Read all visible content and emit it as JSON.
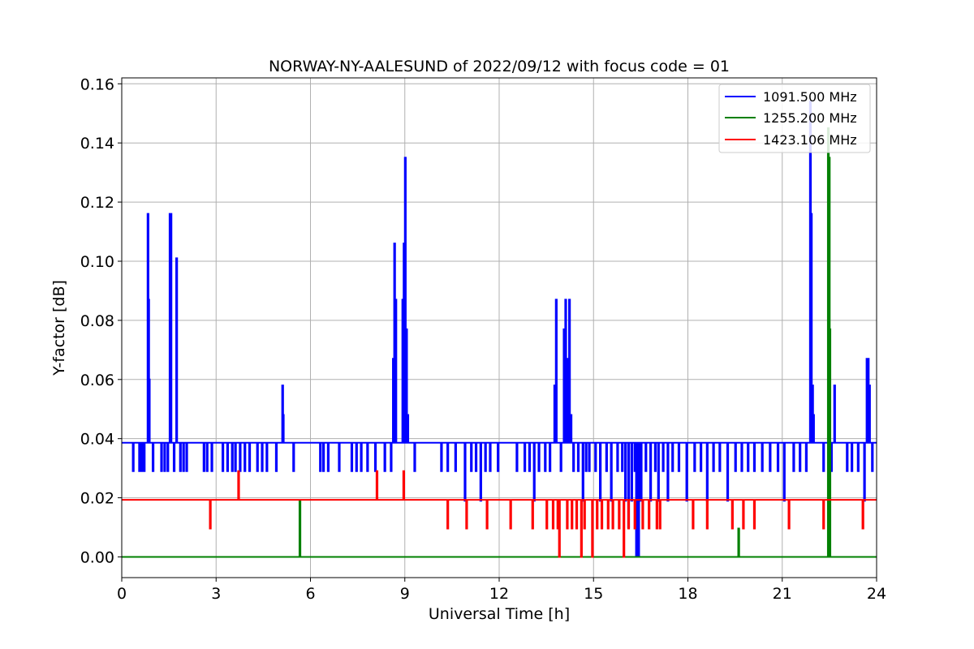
{
  "chart_data": {
    "type": "line",
    "title": "NORWAY-NY-AALESUND of 2022/09/12 with focus code = 01",
    "xlabel": "Universal Time [h]",
    "ylabel": "Y-factor [dB]",
    "xlim": [
      0,
      24
    ],
    "ylim": [
      -0.007,
      0.162
    ],
    "xticks": [
      0,
      3,
      6,
      9,
      12,
      15,
      18,
      21,
      24
    ],
    "xtick_labels": [
      "0",
      "3",
      "6",
      "9",
      "12",
      "15",
      "18",
      "21",
      "24"
    ],
    "yticks": [
      0.0,
      0.02,
      0.04,
      0.06,
      0.08,
      0.1,
      0.12,
      0.14,
      0.16
    ],
    "ytick_labels": [
      "0.00",
      "0.02",
      "0.04",
      "0.06",
      "0.08",
      "0.10",
      "0.12",
      "0.14",
      "0.16"
    ],
    "grid": true,
    "legend_position": "top-right",
    "series": [
      {
        "name": "1091.500 MHz",
        "color": "#0000ff",
        "baseline": 0.0386,
        "spikes": [
          [
            0.35,
            0.029
          ],
          [
            0.55,
            0.029
          ],
          [
            0.62,
            0.029
          ],
          [
            0.7,
            0.029
          ],
          [
            0.82,
            0.116
          ],
          [
            0.84,
            0.087
          ],
          [
            0.86,
            0.06
          ],
          [
            0.98,
            0.029
          ],
          [
            1.25,
            0.029
          ],
          [
            1.35,
            0.029
          ],
          [
            1.45,
            0.029
          ],
          [
            1.52,
            0.116
          ],
          [
            1.55,
            0.116
          ],
          [
            1.65,
            0.029
          ],
          [
            1.73,
            0.101
          ],
          [
            1.85,
            0.029
          ],
          [
            1.95,
            0.029
          ],
          [
            2.05,
            0.029
          ],
          [
            2.6,
            0.029
          ],
          [
            2.7,
            0.029
          ],
          [
            2.85,
            0.029
          ],
          [
            3.2,
            0.029
          ],
          [
            3.35,
            0.029
          ],
          [
            3.5,
            0.029
          ],
          [
            3.6,
            0.029
          ],
          [
            3.75,
            0.029
          ],
          [
            3.9,
            0.029
          ],
          [
            4.05,
            0.029
          ],
          [
            4.3,
            0.029
          ],
          [
            4.45,
            0.029
          ],
          [
            4.6,
            0.029
          ],
          [
            4.9,
            0.029
          ],
          [
            5.1,
            0.058
          ],
          [
            5.12,
            0.048
          ],
          [
            5.45,
            0.029
          ],
          [
            6.3,
            0.029
          ],
          [
            6.4,
            0.029
          ],
          [
            6.55,
            0.029
          ],
          [
            6.9,
            0.029
          ],
          [
            7.3,
            0.029
          ],
          [
            7.45,
            0.029
          ],
          [
            7.6,
            0.029
          ],
          [
            7.8,
            0.029
          ],
          [
            8.05,
            0.029
          ],
          [
            8.35,
            0.029
          ],
          [
            8.55,
            0.029
          ],
          [
            8.62,
            0.067
          ],
          [
            8.66,
            0.106
          ],
          [
            8.7,
            0.087
          ],
          [
            8.92,
            0.087
          ],
          [
            8.96,
            0.106
          ],
          [
            9.0,
            0.135
          ],
          [
            9.04,
            0.077
          ],
          [
            9.08,
            0.048
          ],
          [
            9.3,
            0.029
          ],
          [
            10.15,
            0.029
          ],
          [
            10.35,
            0.029
          ],
          [
            10.6,
            0.029
          ],
          [
            10.9,
            0.019
          ],
          [
            11.1,
            0.029
          ],
          [
            11.25,
            0.029
          ],
          [
            11.4,
            0.019
          ],
          [
            11.55,
            0.029
          ],
          [
            11.7,
            0.029
          ],
          [
            11.95,
            0.029
          ],
          [
            12.55,
            0.029
          ],
          [
            12.8,
            0.029
          ],
          [
            12.95,
            0.029
          ],
          [
            13.1,
            0.019
          ],
          [
            13.25,
            0.029
          ],
          [
            13.45,
            0.029
          ],
          [
            13.6,
            0.029
          ],
          [
            13.75,
            0.058
          ],
          [
            13.8,
            0.087
          ],
          [
            13.95,
            0.029
          ],
          [
            14.05,
            0.077
          ],
          [
            14.1,
            0.087
          ],
          [
            14.15,
            0.067
          ],
          [
            14.22,
            0.087
          ],
          [
            14.27,
            0.048
          ],
          [
            14.35,
            0.029
          ],
          [
            14.5,
            0.029
          ],
          [
            14.65,
            0.019
          ],
          [
            14.75,
            0.029
          ],
          [
            14.85,
            0.029
          ],
          [
            15.05,
            0.029
          ],
          [
            15.2,
            0.019
          ],
          [
            15.4,
            0.029
          ],
          [
            15.55,
            0.019
          ],
          [
            15.75,
            0.029
          ],
          [
            15.9,
            0.029
          ],
          [
            16.0,
            0.019
          ],
          [
            16.1,
            0.01
          ],
          [
            16.2,
            0.019
          ],
          [
            16.3,
            0.029
          ],
          [
            16.35,
            0.0
          ],
          [
            16.42,
            0.0
          ],
          [
            16.5,
            0.019
          ],
          [
            16.65,
            0.029
          ],
          [
            16.8,
            0.019
          ],
          [
            16.95,
            0.029
          ],
          [
            17.05,
            0.019
          ],
          [
            17.2,
            0.029
          ],
          [
            17.35,
            0.019
          ],
          [
            17.5,
            0.029
          ],
          [
            17.7,
            0.029
          ],
          [
            17.95,
            0.019
          ],
          [
            18.2,
            0.029
          ],
          [
            18.4,
            0.029
          ],
          [
            18.6,
            0.019
          ],
          [
            18.8,
            0.029
          ],
          [
            19.0,
            0.029
          ],
          [
            19.25,
            0.019
          ],
          [
            19.5,
            0.029
          ],
          [
            19.7,
            0.029
          ],
          [
            19.9,
            0.029
          ],
          [
            20.1,
            0.029
          ],
          [
            20.35,
            0.029
          ],
          [
            20.6,
            0.029
          ],
          [
            20.85,
            0.029
          ],
          [
            21.05,
            0.019
          ],
          [
            21.35,
            0.029
          ],
          [
            21.55,
            0.029
          ],
          [
            21.75,
            0.029
          ],
          [
            21.88,
            0.154
          ],
          [
            21.91,
            0.116
          ],
          [
            21.95,
            0.058
          ],
          [
            21.98,
            0.048
          ],
          [
            22.3,
            0.029
          ],
          [
            22.55,
            0.029
          ],
          [
            22.65,
            0.058
          ],
          [
            23.05,
            0.029
          ],
          [
            23.2,
            0.029
          ],
          [
            23.4,
            0.029
          ],
          [
            23.6,
            0.019
          ],
          [
            23.68,
            0.067
          ],
          [
            23.72,
            0.067
          ],
          [
            23.76,
            0.058
          ],
          [
            23.85,
            0.029
          ]
        ]
      },
      {
        "name": "1255.200 MHz",
        "color": "#008000",
        "baseline": 0.0,
        "spikes": [
          [
            5.65,
            0.019
          ],
          [
            19.6,
            0.0096
          ],
          [
            22.45,
            0.145
          ],
          [
            22.48,
            0.135
          ],
          [
            22.5,
            0.077
          ]
        ]
      },
      {
        "name": "1423.106 MHz",
        "color": "#ff0000",
        "baseline": 0.0193,
        "spikes": [
          [
            2.8,
            0.0096
          ],
          [
            3.7,
            0.029
          ],
          [
            8.1,
            0.029
          ],
          [
            8.95,
            0.029
          ],
          [
            10.35,
            0.0096
          ],
          [
            10.95,
            0.0096
          ],
          [
            11.6,
            0.0096
          ],
          [
            12.35,
            0.0096
          ],
          [
            13.05,
            0.0096
          ],
          [
            13.5,
            0.0096
          ],
          [
            13.7,
            0.0096
          ],
          [
            13.85,
            0.0096
          ],
          [
            13.9,
            0.0
          ],
          [
            14.15,
            0.0096
          ],
          [
            14.3,
            0.0096
          ],
          [
            14.45,
            0.0096
          ],
          [
            14.6,
            0.0
          ],
          [
            14.7,
            0.0096
          ],
          [
            14.95,
            0.0
          ],
          [
            15.1,
            0.0096
          ],
          [
            15.25,
            0.0096
          ],
          [
            15.45,
            0.0096
          ],
          [
            15.6,
            0.0096
          ],
          [
            15.8,
            0.0096
          ],
          [
            15.95,
            0.0
          ],
          [
            16.1,
            0.0096
          ],
          [
            16.3,
            0.0096
          ],
          [
            16.55,
            0.0096
          ],
          [
            16.75,
            0.0096
          ],
          [
            17.0,
            0.0096
          ],
          [
            17.1,
            0.0096
          ],
          [
            18.15,
            0.0096
          ],
          [
            18.6,
            0.0096
          ],
          [
            19.4,
            0.0096
          ],
          [
            19.75,
            0.0096
          ],
          [
            20.1,
            0.0096
          ],
          [
            21.2,
            0.0096
          ],
          [
            22.3,
            0.0096
          ],
          [
            23.55,
            0.0096
          ]
        ]
      }
    ]
  }
}
